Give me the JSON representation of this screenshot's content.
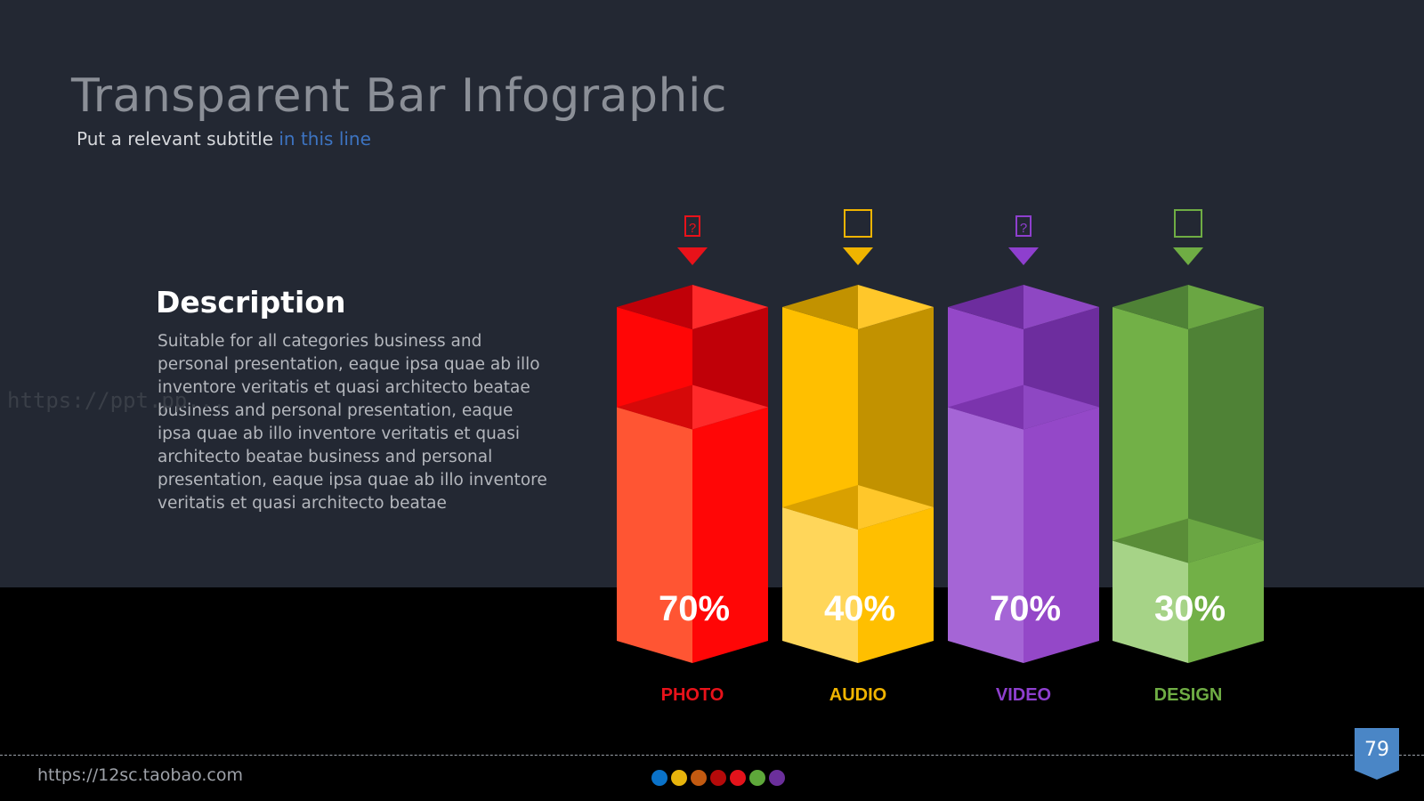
{
  "slide": {
    "title": "Transparent Bar Infographic",
    "subtitle_plain": "Put a relevant subtitle ",
    "subtitle_highlight": "in this line",
    "description_heading": "Description",
    "description_body": "Suitable for all categories business and personal presentation, eaque ipsa quae ab illo inventore veritatis et quasi architecto beatae business and personal presentation, eaque ipsa quae ab illo inventore veritatis et quasi architecto beatae business and personal presentation, eaque ipsa quae ab illo inventore veritatis et quasi architecto beatae",
    "watermark": "https://ppt.pp...",
    "footer_url": "https://12sc.taobao.com",
    "page_number": "79",
    "dots": [
      "#0a72c9",
      "#e7b40c",
      "#c25a11",
      "#b50a0a",
      "#e4131b",
      "#5ea83a",
      "#6b2f9b"
    ]
  },
  "chart_data": {
    "type": "bar",
    "title": "",
    "xlabel": "",
    "ylabel": "",
    "ylim": [
      0,
      100
    ],
    "categories": [
      "PHOTO",
      "AUDIO",
      "VIDEO",
      "DESIGN"
    ],
    "values": [
      70,
      40,
      70,
      30
    ],
    "value_labels": [
      "70%",
      "40%",
      "70%",
      "30%"
    ],
    "icons": [
      "camera-icon",
      "music-icon",
      "video-icon",
      "pencil-icon"
    ],
    "colors": [
      {
        "label": "#e8121a",
        "base": "#ff5533",
        "bright": "#ff0606",
        "dark": "#c00008",
        "top": "#ff2a2a",
        "topdark": "#d60909"
      },
      {
        "label": "#f0b400",
        "base": "#ffd65a",
        "bright": "#ffbf00",
        "dark": "#c29200",
        "top": "#ffc72a",
        "topdark": "#d9a000"
      },
      {
        "label": "#8e3fce",
        "base": "#a565d6",
        "bright": "#9448c8",
        "dark": "#6d2d9e",
        "top": "#8e47c3",
        "topdark": "#7b34ad"
      },
      {
        "label": "#6fad44",
        "base": "#a6d387",
        "bright": "#72b047",
        "dark": "#4f8236",
        "top": "#6aa643",
        "topdark": "#5a8d38"
      }
    ]
  }
}
